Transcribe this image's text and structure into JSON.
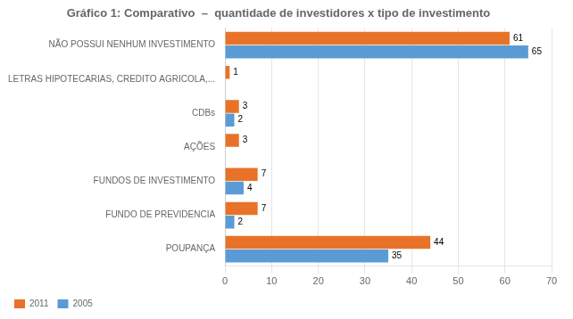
{
  "chart_data": {
    "type": "bar",
    "orientation": "horizontal",
    "title": "Gráfico 1: Comparativo  –  quantidade de investidores x tipo de investimento",
    "categories": [
      "POUPANÇA",
      "FUNDO DE PREVIDENCIA",
      "FUNDOS DE INVESTIMENTO",
      "AÇÕES",
      "CDBs",
      "LETRAS HIPOTECARIAS, CREDITO AGRICOLA,...",
      "NÃO POSSUI NENHUM INVESTIMENTO"
    ],
    "series": [
      {
        "name": "2011",
        "color": "#E87328",
        "values": [
          44,
          7,
          7,
          3,
          3,
          1,
          61
        ],
        "value_labels": [
          "44",
          "7",
          "7",
          "3",
          "3",
          "1",
          "61"
        ]
      },
      {
        "name": "2005",
        "color": "#5B9BD5",
        "values": [
          35,
          2,
          4,
          0,
          2,
          0,
          65
        ],
        "value_labels": [
          "35",
          "2",
          "4",
          null,
          "2",
          null,
          "65"
        ]
      }
    ],
    "xlim": [
      0,
      70
    ],
    "xticks": [
      0,
      10,
      20,
      30,
      40,
      50,
      60,
      70
    ],
    "grid": true,
    "legend": "lower left",
    "data_labels": true
  }
}
